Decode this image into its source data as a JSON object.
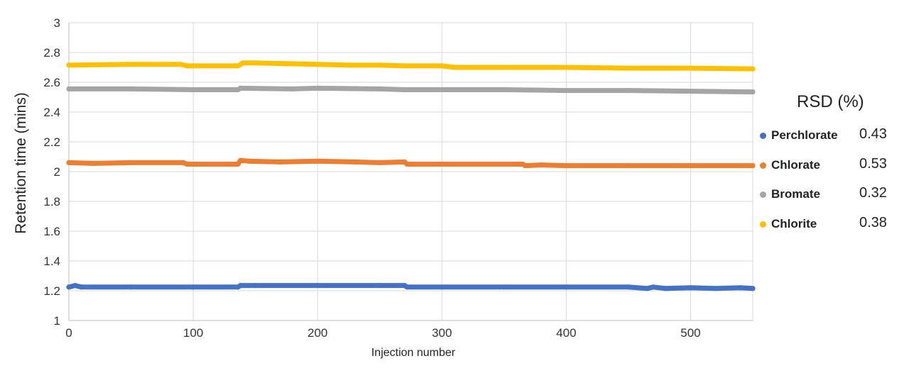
{
  "chart_data": {
    "type": "scatter",
    "xlabel": "Injection number",
    "ylabel": "Retention time (mins)",
    "xlim": [
      0,
      550
    ],
    "ylim": [
      1,
      3
    ],
    "x_ticks": [
      "0",
      "100",
      "200",
      "300",
      "400",
      "500"
    ],
    "y_ticks": [
      "1",
      "1.2",
      "1.4",
      "1.6",
      "1.8",
      "2",
      "2.2",
      "2.4",
      "2.6",
      "2.8",
      "3"
    ],
    "grid": true,
    "legend_title": "RSD (%)",
    "legend_position": "right",
    "series": [
      {
        "name": "Perchlorate",
        "rsd": "0.43",
        "color": "#4472C4",
        "points": [
          [
            0,
            1.225
          ],
          [
            5,
            1.235
          ],
          [
            10,
            1.225
          ],
          [
            50,
            1.225
          ],
          [
            100,
            1.225
          ],
          [
            136,
            1.225
          ],
          [
            138,
            1.235
          ],
          [
            150,
            1.235
          ],
          [
            200,
            1.235
          ],
          [
            250,
            1.235
          ],
          [
            270,
            1.235
          ],
          [
            272,
            1.225
          ],
          [
            300,
            1.225
          ],
          [
            350,
            1.225
          ],
          [
            400,
            1.225
          ],
          [
            450,
            1.225
          ],
          [
            465,
            1.215
          ],
          [
            470,
            1.225
          ],
          [
            480,
            1.215
          ],
          [
            500,
            1.22
          ],
          [
            520,
            1.215
          ],
          [
            540,
            1.22
          ],
          [
            550,
            1.215
          ]
        ]
      },
      {
        "name": "Chlorate",
        "rsd": "0.53",
        "color": "#ED7D31",
        "points": [
          [
            0,
            2.06
          ],
          [
            20,
            2.055
          ],
          [
            50,
            2.06
          ],
          [
            92,
            2.06
          ],
          [
            95,
            2.05
          ],
          [
            136,
            2.05
          ],
          [
            138,
            2.075
          ],
          [
            145,
            2.07
          ],
          [
            170,
            2.065
          ],
          [
            200,
            2.07
          ],
          [
            230,
            2.065
          ],
          [
            250,
            2.06
          ],
          [
            270,
            2.065
          ],
          [
            272,
            2.05
          ],
          [
            300,
            2.05
          ],
          [
            365,
            2.05
          ],
          [
            367,
            2.04
          ],
          [
            380,
            2.045
          ],
          [
            400,
            2.04
          ],
          [
            450,
            2.04
          ],
          [
            500,
            2.04
          ],
          [
            550,
            2.04
          ]
        ]
      },
      {
        "name": "Bromate",
        "rsd": "0.32",
        "color": "#A5A5A5",
        "points": [
          [
            0,
            2.555
          ],
          [
            50,
            2.555
          ],
          [
            100,
            2.55
          ],
          [
            136,
            2.55
          ],
          [
            138,
            2.56
          ],
          [
            180,
            2.555
          ],
          [
            200,
            2.56
          ],
          [
            250,
            2.555
          ],
          [
            270,
            2.55
          ],
          [
            300,
            2.55
          ],
          [
            350,
            2.55
          ],
          [
            400,
            2.545
          ],
          [
            450,
            2.545
          ],
          [
            500,
            2.54
          ],
          [
            550,
            2.535
          ]
        ]
      },
      {
        "name": "Chlorite",
        "rsd": "0.38",
        "color": "#FFC000",
        "points": [
          [
            0,
            2.715
          ],
          [
            50,
            2.72
          ],
          [
            90,
            2.72
          ],
          [
            95,
            2.71
          ],
          [
            136,
            2.71
          ],
          [
            140,
            2.73
          ],
          [
            150,
            2.73
          ],
          [
            175,
            2.725
          ],
          [
            200,
            2.72
          ],
          [
            225,
            2.715
          ],
          [
            250,
            2.715
          ],
          [
            270,
            2.71
          ],
          [
            300,
            2.71
          ],
          [
            310,
            2.7
          ],
          [
            350,
            2.7
          ],
          [
            400,
            2.7
          ],
          [
            450,
            2.695
          ],
          [
            500,
            2.695
          ],
          [
            550,
            2.69
          ]
        ]
      }
    ]
  }
}
